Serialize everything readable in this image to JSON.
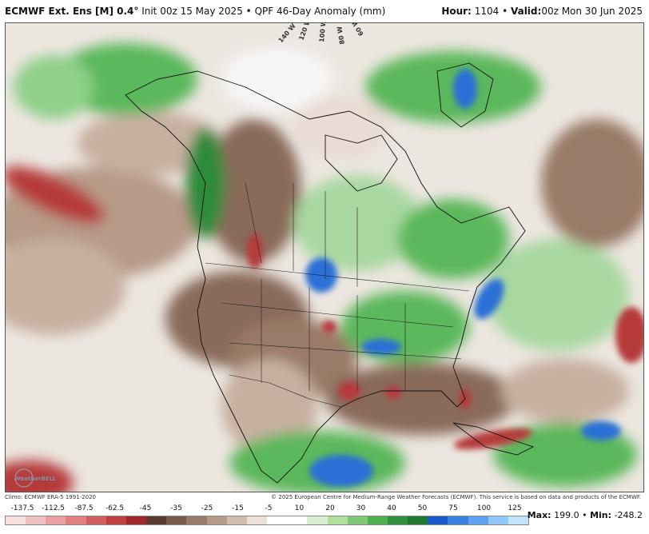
{
  "header": {
    "model": "ECMWF Ext. Ens [M] 0.4",
    "degree": "°",
    "init": "Init 00z 15 May 2025",
    "bullet": "•",
    "product": "QPF 46-Day Anomaly (mm)",
    "hour_label": "Hour:",
    "hour_value": "1104",
    "valid_label": "Valid:",
    "valid_value": "00z Mon 30 Jun 2025"
  },
  "map": {
    "longitude_labels": [
      "140 W",
      "120 W",
      "100 W",
      "80 W",
      "60 W"
    ],
    "colors": {
      "ocean_neutral": "#e8e8e8",
      "dry_strong": "#b53a3a",
      "dry_medium": "#8a6a5a",
      "dry_light": "#c8b0a0",
      "wet_light": "#a8d8a0",
      "wet_medium": "#5cb85c",
      "wet_strong": "#2e8b3e",
      "very_wet": "#2a6fd6"
    }
  },
  "credits": {
    "climo": "Climo: ECMWF ERA-5 1991-2020",
    "copyright": "© 2025 European Centre for Medium-Range Weather Forecasts (ECMWF). This service is based on data and products of the ECMWF."
  },
  "logo": {
    "text": "WeatherBELL"
  },
  "colorbar": {
    "ticks": [
      "-137.5",
      "-112.5",
      "-87.5",
      "-62.5",
      "-45",
      "-35",
      "-25",
      "-15",
      "-5",
      "10",
      "20",
      "30",
      "40",
      "50",
      "75",
      "100",
      "125"
    ],
    "colors": [
      "#f8e0e0",
      "#f0c0c0",
      "#e8a0a0",
      "#e08080",
      "#d06060",
      "#c04040",
      "#a02828",
      "#5a3a30",
      "#7a5a4a",
      "#9a7a68",
      "#b89a88",
      "#d2bcae",
      "#ece0d8",
      "#ffffff",
      "#ffffff",
      "#d8f0d0",
      "#b0e0a0",
      "#80c878",
      "#50b050",
      "#309040",
      "#207830",
      "#1a5ac8",
      "#3a80e0",
      "#60a0f0",
      "#90c8f8",
      "#c0e4fc"
    ]
  },
  "maxmin": {
    "max_label": "Max:",
    "max_value": "199.0",
    "min_label": "Min:",
    "min_value": "-248.2"
  }
}
